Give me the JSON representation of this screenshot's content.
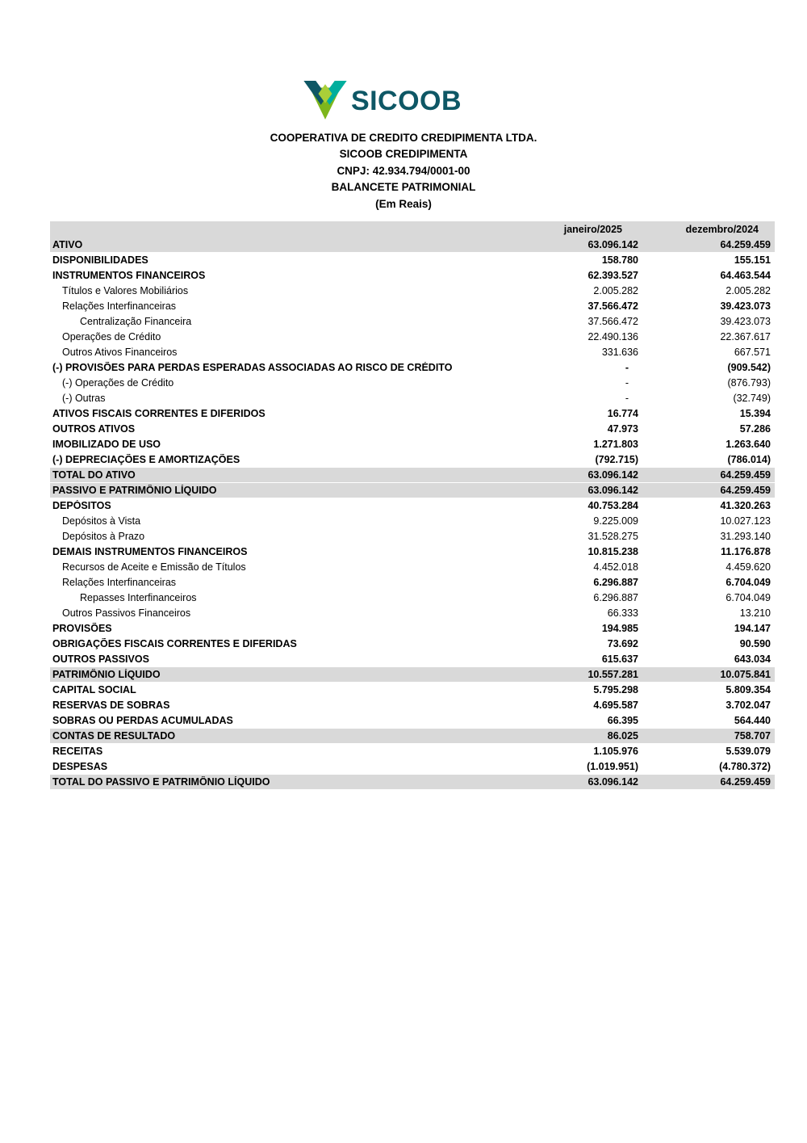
{
  "brand": {
    "wordmark": "SICOOB",
    "colors": {
      "dark_teal": "#0e5765",
      "turquoise": "#00ae9d",
      "green": "#7db61c",
      "light_green": "#a9cf38"
    }
  },
  "header": {
    "lines": [
      "COOPERATIVA DE CREDITO CREDIPIMENTA LTDA.",
      "SICOOB CREDIPIMENTA",
      "CNPJ: 42.934.794/0001-00",
      "BALANCETE PATRIMONIAL",
      "(Em Reais)"
    ]
  },
  "table": {
    "shaded_row_color": "#d9d9d9",
    "columns": {
      "col1": "janeiro/2025",
      "col2": "dezembro/2024"
    },
    "rows": [
      {
        "label": "ATIVO",
        "jan": "63.096.142",
        "dez": "64.259.459",
        "bold": true,
        "shaded": true
      },
      {
        "label": "DISPONIBILIDADES",
        "jan": "158.780",
        "dez": "155.151",
        "bold": true
      },
      {
        "label": "INSTRUMENTOS FINANCEIROS",
        "jan": "62.393.527",
        "dez": "64.463.544",
        "bold": true
      },
      {
        "label": "Títulos e Valores Mobiliários",
        "jan": "2.005.282",
        "dez": "2.005.282",
        "indent": 1
      },
      {
        "label": "Relações Interfinanceiras",
        "jan": "37.566.472",
        "dez": "39.423.073",
        "indent": 1,
        "values_bold": true
      },
      {
        "label": "Centralização Financeira",
        "jan": "37.566.472",
        "dez": "39.423.073",
        "indent": 2
      },
      {
        "label": "Operações de Crédito",
        "jan": "22.490.136",
        "dez": "22.367.617",
        "indent": 1
      },
      {
        "label": "Outros Ativos Financeiros",
        "jan": "331.636",
        "dez": "667.571",
        "indent": 1
      },
      {
        "label": "(-) PROVISÕES PARA PERDAS ESPERADAS ASSOCIADAS AO RISCO DE CRÉDITO",
        "jan": "-",
        "dez": "(909.542)",
        "bold": true
      },
      {
        "label": "(-) Operações de Crédito",
        "jan": "-",
        "dez": "(876.793)",
        "indent": 1
      },
      {
        "label": "(-) Outras",
        "jan": "-",
        "dez": "(32.749)",
        "indent": 1
      },
      {
        "label": "ATIVOS FISCAIS CORRENTES E DIFERIDOS",
        "jan": "16.774",
        "dez": "15.394",
        "bold": true
      },
      {
        "label": "OUTROS ATIVOS",
        "jan": "47.973",
        "dez": "57.286",
        "bold": true
      },
      {
        "label": "IMOBILIZADO DE USO",
        "jan": "1.271.803",
        "dez": "1.263.640",
        "bold": true
      },
      {
        "label": "(-) DEPRECIAÇÕES E AMORTIZAÇÕES",
        "jan": "(792.715)",
        "dez": "(786.014)",
        "bold": true
      },
      {
        "label": "TOTAL DO ATIVO",
        "jan": "63.096.142",
        "dez": "64.259.459",
        "bold": true,
        "shaded": true
      },
      {
        "label": "PASSIVO E PATRIMÔNIO LÍQUIDO",
        "jan": "63.096.142",
        "dez": "64.259.459",
        "bold": true,
        "shaded": true
      },
      {
        "label": "DEPÓSITOS",
        "jan": "40.753.284",
        "dez": "41.320.263",
        "bold": true
      },
      {
        "label": "Depósitos à Vista",
        "jan": "9.225.009",
        "dez": "10.027.123",
        "indent": 1
      },
      {
        "label": "Depósitos à Prazo",
        "jan": "31.528.275",
        "dez": "31.293.140",
        "indent": 1
      },
      {
        "label": "DEMAIS INSTRUMENTOS FINANCEIROS",
        "jan": "10.815.238",
        "dez": "11.176.878",
        "bold": true
      },
      {
        "label": "Recursos de Aceite e Emissão de Títulos",
        "jan": "4.452.018",
        "dez": "4.459.620",
        "indent": 1
      },
      {
        "label": "Relações Interfinanceiras",
        "jan": "6.296.887",
        "dez": "6.704.049",
        "indent": 1,
        "values_bold": true
      },
      {
        "label": "Repasses Interfinanceiros",
        "jan": "6.296.887",
        "dez": "6.704.049",
        "indent": 2
      },
      {
        "label": "Outros Passivos Financeiros",
        "jan": "66.333",
        "dez": "13.210",
        "indent": 1
      },
      {
        "label": "PROVISÕES",
        "jan": "194.985",
        "dez": "194.147",
        "bold": true
      },
      {
        "label": "OBRIGAÇÕES FISCAIS CORRENTES E DIFERIDAS",
        "jan": "73.692",
        "dez": "90.590",
        "bold": true
      },
      {
        "label": "OUTROS PASSIVOS",
        "jan": "615.637",
        "dez": "643.034",
        "bold": true
      },
      {
        "label": "PATRIMÔNIO LÍQUIDO",
        "jan": "10.557.281",
        "dez": "10.075.841",
        "bold": true,
        "shaded": true
      },
      {
        "label": "CAPITAL SOCIAL",
        "jan": "5.795.298",
        "dez": "5.809.354",
        "bold": true
      },
      {
        "label": "RESERVAS DE SOBRAS",
        "jan": "4.695.587",
        "dez": "3.702.047",
        "bold": true
      },
      {
        "label": "SOBRAS OU PERDAS ACUMULADAS",
        "jan": "66.395",
        "dez": "564.440",
        "bold": true
      },
      {
        "label": "CONTAS DE RESULTADO",
        "jan": "86.025",
        "dez": "758.707",
        "bold": true,
        "shaded": true
      },
      {
        "label": "RECEITAS",
        "jan": "1.105.976",
        "dez": "5.539.079",
        "bold": true
      },
      {
        "label": "DESPESAS",
        "jan": "(1.019.951)",
        "dez": "(4.780.372)",
        "bold": true
      },
      {
        "label": "TOTAL DO PASSIVO E PATRIMÔNIO LÍQUIDO",
        "jan": "63.096.142",
        "dez": "64.259.459",
        "bold": true,
        "shaded": true
      }
    ]
  }
}
